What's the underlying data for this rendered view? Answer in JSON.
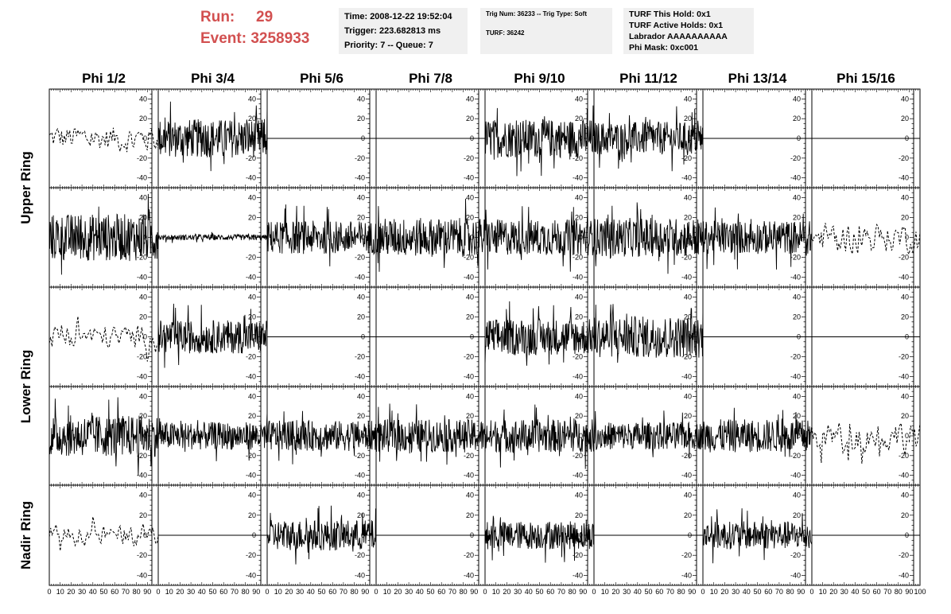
{
  "header": {
    "run_label": "Run:",
    "run_value": "29",
    "event_label": "Event:",
    "event_value": "3258933",
    "info1": [
      "Time: 2008-12-22 19:52:04",
      "Trigger: 223.682813 ms",
      "Priority: 7 -- Queue: 7"
    ],
    "info2": [
      "Trig Num: 36233 -- Trig Type: Soft",
      "TURF: 36242"
    ],
    "info3": [
      "TURF This Hold: 0x1",
      "TURF Active Holds: 0x1",
      "Labrador AAAAAAAAAA",
      "Phi Mask: 0xc001"
    ],
    "colors": {
      "run": "#d25050",
      "info_bg": "#f0f0f0"
    }
  },
  "chart_data": {
    "type": "line",
    "columns": [
      "Phi 1/2",
      "Phi 3/4",
      "Phi 5/6",
      "Phi 7/8",
      "Phi 9/10",
      "Phi 11/12",
      "Phi 13/14",
      "Phi 15/16"
    ],
    "ring_labels": [
      "Upper Ring",
      "Lower Ring",
      "Nadir Ring"
    ],
    "ylim": [
      -50,
      50
    ],
    "yticks": [
      -40,
      -20,
      0,
      20,
      40
    ],
    "xlim": [
      0,
      100
    ],
    "xticks": [
      0,
      10,
      20,
      30,
      40,
      50,
      60,
      70,
      80,
      90,
      100
    ],
    "panels": [
      [
        "dashed:14",
        "solid:14",
        "flat",
        "flat",
        "solid:14",
        "solid:12",
        "flat",
        "flat"
      ],
      [
        "solid:17",
        "solid:2",
        "solid:12",
        "solid:14",
        "solid:13",
        "solid:14",
        "solid:12",
        "dashed:15"
      ],
      [
        "dashed:12",
        "solid:12",
        "flat",
        "flat",
        "solid:13",
        "solid:15",
        "flat",
        "flat"
      ],
      [
        "solid:15",
        "solid:10",
        "solid:11",
        "solid:12",
        "solid:12",
        "solid:10",
        "solid:12",
        "dashed:16"
      ],
      [
        "dashed:10",
        "flat",
        "solid:11",
        "flat",
        "solid:10",
        "flat",
        "solid:10",
        "flat"
      ]
    ]
  }
}
